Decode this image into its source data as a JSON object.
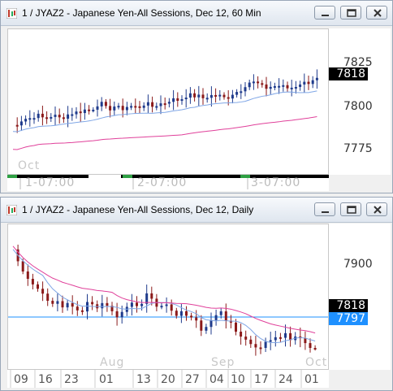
{
  "window1": {
    "title": "1 / JYAZ2 - Japanese Yen-All Sessions, Dec 12, 60 Min",
    "y_labels": [
      "7825",
      "7800",
      "7775"
    ],
    "price": "7818",
    "price_color": "#000000",
    "x_overlay": "Oct",
    "x_ticks": [
      "1-07:00",
      "2-07:00",
      "3-07:00"
    ]
  },
  "window2": {
    "title": "1 / JYAZ2 - Japanese Yen-All Sessions, Dec 12, Daily",
    "y_labels": [
      "7900"
    ],
    "price": "7818",
    "price_color": "#000000",
    "line_value": "7797",
    "line_color": "#1e90ff",
    "x_overlays": [
      "Aug",
      "Sep",
      "Oct"
    ],
    "x_ticks": [
      "09",
      "16",
      "23",
      "01",
      "13",
      "20",
      "27",
      "04",
      "10",
      "17",
      "24",
      "01"
    ]
  },
  "controls": {
    "minimize": "minimize",
    "restore": "restore",
    "close": "close"
  },
  "colors": {
    "up_candle": "#1f3b8c",
    "down_candle": "#8b1a1a",
    "ma_fast": "#7fa6e6",
    "ma_slow": "#e0409a"
  }
}
